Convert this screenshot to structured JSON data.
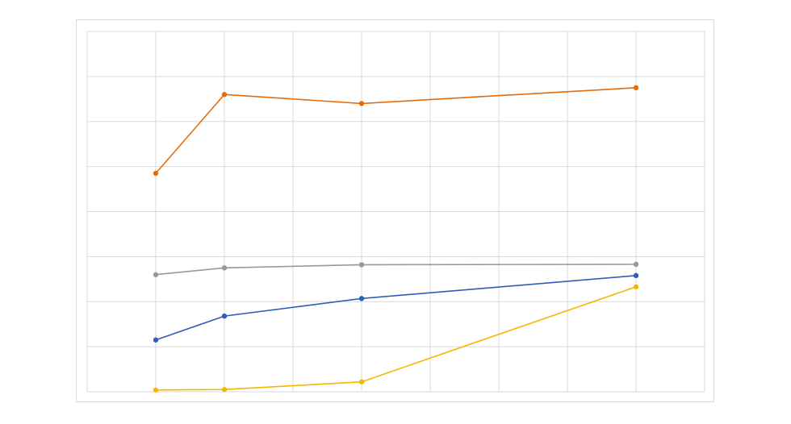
{
  "chart_data": {
    "type": "line",
    "x": [
      1,
      2,
      4,
      8
    ],
    "xlim": [
      0,
      9
    ],
    "ylim": [
      0,
      8
    ],
    "grid": true,
    "legend": "none",
    "series": [
      {
        "color": "#E46C0A",
        "values": [
          4.85,
          6.6,
          6.4,
          6.75
        ],
        "y_label_shown": false
      },
      {
        "color": "#999999",
        "values": [
          2.6,
          2.75,
          2.82,
          2.83
        ]
      },
      {
        "color": "#2E5EB8",
        "values": [
          1.15,
          1.68,
          2.07,
          2.58
        ]
      },
      {
        "color": "#F5B800",
        "values": [
          0.04,
          0.05,
          0.22,
          2.33
        ]
      }
    ]
  }
}
